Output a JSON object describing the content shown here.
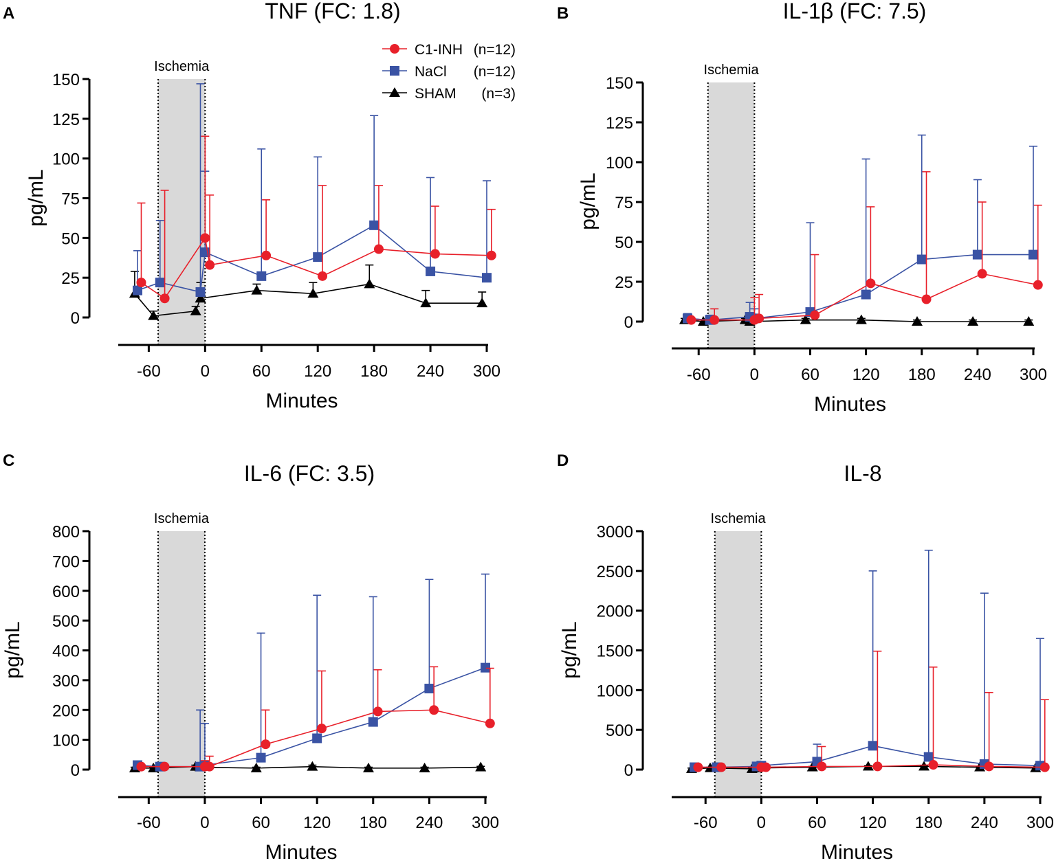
{
  "legend": {
    "entries": [
      {
        "name": "C1-INH",
        "n": "(n=12)",
        "color": "#e8202a",
        "marker": "circle"
      },
      {
        "name": "NaCl",
        "n": "(n=12)",
        "color": "#3a53a4",
        "marker": "square"
      },
      {
        "name": "SHAM",
        "n": "(n=3)",
        "color": "#000000",
        "marker": "triangle"
      }
    ]
  },
  "colors": {
    "c1inh": "#e8202a",
    "nacl": "#3a53a4",
    "sham": "#000000",
    "ischemia_band": "#d9d9d9"
  },
  "chart_data": [
    {
      "panel": "A",
      "type": "line",
      "title": "TNF (FC: 1.8)",
      "xlabel": "Minutes",
      "ylabel": "pg/mL",
      "annotation": "Ischemia",
      "ischemia_range": [
        -50,
        0
      ],
      "xlim": [
        -90,
        305
      ],
      "ylim": [
        0,
        150
      ],
      "xticks": [
        -60,
        0,
        60,
        120,
        180,
        240,
        300
      ],
      "xtick_labels": [
        "-60",
        "0",
        "60",
        "120",
        "180",
        "240",
        "300"
      ],
      "yticks": [
        0,
        25,
        50,
        75,
        100,
        125,
        150
      ],
      "ytick_labels": [
        "0",
        "25",
        "50",
        "75",
        "100",
        "125",
        "150"
      ],
      "series": [
        {
          "name": "SHAM",
          "x": [
            -75,
            -55,
            -10,
            -5,
            55,
            115,
            175,
            235,
            295
          ],
          "values": [
            15,
            1,
            4,
            12,
            17,
            15,
            21,
            9,
            9
          ],
          "err": [
            14,
            3,
            3,
            10,
            4,
            7,
            12,
            8,
            7
          ]
        },
        {
          "name": "NaCl",
          "x": [
            -72,
            -48,
            -5,
            0,
            60,
            120,
            180,
            240,
            300
          ],
          "values": [
            17,
            22,
            16,
            41,
            26,
            38,
            58,
            29,
            25
          ],
          "err": [
            25,
            39,
            131,
            51,
            80,
            63,
            69,
            59,
            61
          ]
        },
        {
          "name": "C1-INH",
          "x": [
            -68,
            -43,
            0,
            5,
            65,
            125,
            185,
            245,
            305
          ],
          "values": [
            22,
            12,
            50,
            33,
            39,
            26,
            43,
            40,
            39
          ],
          "err": [
            50,
            68,
            64,
            44,
            35,
            57,
            40,
            30,
            29
          ]
        }
      ]
    },
    {
      "panel": "B",
      "type": "line",
      "title": "IL-1β (FC: 7.5)",
      "xlabel": "Minutes",
      "ylabel": "pg/mL",
      "annotation": "Ischemia",
      "ischemia_range": [
        -50,
        0
      ],
      "xlim": [
        -90,
        305
      ],
      "ylim": [
        0,
        150
      ],
      "xticks": [
        -60,
        0,
        60,
        120,
        180,
        240,
        300
      ],
      "xtick_labels": [
        "-60",
        "0",
        "60",
        "120",
        "180",
        "240",
        "300"
      ],
      "yticks": [
        0,
        25,
        50,
        75,
        100,
        125,
        150
      ],
      "ytick_labels": [
        "0",
        "25",
        "50",
        "75",
        "100",
        "125",
        "150"
      ],
      "series": [
        {
          "name": "SHAM",
          "x": [
            -75,
            -55,
            -10,
            -5,
            55,
            115,
            175,
            235,
            295
          ],
          "values": [
            1,
            0,
            1,
            0,
            1,
            1,
            0,
            0,
            0
          ],
          "err": [
            1,
            1,
            1,
            1,
            1,
            1,
            1,
            1,
            1
          ]
        },
        {
          "name": "NaCl",
          "x": [
            -72,
            -48,
            -5,
            0,
            60,
            120,
            180,
            240,
            300
          ],
          "values": [
            2,
            1,
            3,
            2,
            6,
            17,
            39,
            42,
            42
          ],
          "err": [
            3,
            3,
            9,
            6,
            56,
            85,
            78,
            47,
            68
          ]
        },
        {
          "name": "C1-INH",
          "x": [
            -68,
            -43,
            0,
            5,
            65,
            125,
            185,
            245,
            305
          ],
          "values": [
            1,
            1,
            1,
            2,
            4,
            24,
            14,
            30,
            23
          ],
          "err": [
            1,
            7,
            14,
            15,
            38,
            48,
            80,
            45,
            50
          ]
        }
      ]
    },
    {
      "panel": "C",
      "type": "line",
      "title": "IL-6 (FC: 3.5)",
      "xlabel": "Minutes",
      "ylabel": "pg/mL",
      "annotation": "Ischemia",
      "ischemia_range": [
        -50,
        0
      ],
      "xlim": [
        -90,
        305
      ],
      "ylim": [
        0,
        800
      ],
      "xticks": [
        -60,
        0,
        60,
        120,
        180,
        240,
        300
      ],
      "xtick_labels": [
        "-60",
        "0",
        "60",
        "120",
        "180",
        "240",
        "300"
      ],
      "yticks": [
        0,
        100,
        200,
        300,
        400,
        500,
        600,
        700,
        800
      ],
      "ytick_labels": [
        "0",
        "100",
        "200",
        "300",
        "400",
        "500",
        "600",
        "700",
        "800"
      ],
      "series": [
        {
          "name": "SHAM",
          "x": [
            -75,
            -55,
            -10,
            -5,
            55,
            115,
            175,
            235,
            295
          ],
          "values": [
            5,
            5,
            10,
            8,
            5,
            10,
            5,
            5,
            8
          ],
          "err": [
            3,
            3,
            5,
            5,
            3,
            5,
            3,
            3,
            3
          ]
        },
        {
          "name": "NaCl",
          "x": [
            -72,
            -48,
            -5,
            0,
            60,
            120,
            180,
            240,
            300
          ],
          "values": [
            15,
            10,
            10,
            15,
            40,
            105,
            160,
            272,
            342
          ],
          "err": [
            5,
            5,
            190,
            140,
            418,
            480,
            420,
            366,
            314
          ]
        },
        {
          "name": "C1-INH",
          "x": [
            -68,
            -43,
            0,
            5,
            65,
            125,
            185,
            245,
            305
          ],
          "values": [
            10,
            10,
            10,
            10,
            85,
            138,
            195,
            200,
            155
          ],
          "err": [
            5,
            5,
            20,
            35,
            115,
            193,
            140,
            145,
            185
          ]
        }
      ]
    },
    {
      "panel": "D",
      "type": "line",
      "title": "IL-8",
      "xlabel": "Minutes",
      "ylabel": "pg/mL",
      "annotation": "Ischemia",
      "ischemia_range": [
        -50,
        0
      ],
      "xlim": [
        -90,
        305
      ],
      "ylim": [
        0,
        3000
      ],
      "xticks": [
        -60,
        0,
        60,
        120,
        180,
        240,
        300
      ],
      "xtick_labels": [
        "-60",
        "0",
        "60",
        "120",
        "180",
        "240",
        "300"
      ],
      "yticks": [
        0,
        500,
        1000,
        1500,
        2000,
        2500,
        3000
      ],
      "ytick_labels": [
        "0",
        "500",
        "1000",
        "1500",
        "2000",
        "2500",
        "3000"
      ],
      "series": [
        {
          "name": "SHAM",
          "x": [
            -75,
            -55,
            -10,
            -5,
            55,
            115,
            175,
            235,
            295
          ],
          "values": [
            10,
            20,
            10,
            20,
            30,
            40,
            40,
            30,
            20
          ],
          "err": [
            10,
            10,
            10,
            10,
            10,
            10,
            10,
            10,
            10
          ]
        },
        {
          "name": "NaCl",
          "x": [
            -72,
            -48,
            -5,
            0,
            60,
            120,
            180,
            240,
            300
          ],
          "values": [
            30,
            30,
            40,
            50,
            100,
            300,
            160,
            70,
            50
          ],
          "err": [
            20,
            20,
            30,
            30,
            220,
            2200,
            2600,
            2150,
            1600
          ]
        },
        {
          "name": "C1-INH",
          "x": [
            -68,
            -43,
            0,
            5,
            65,
            125,
            185,
            245,
            305
          ],
          "values": [
            30,
            30,
            30,
            30,
            40,
            40,
            60,
            40,
            30
          ],
          "err": [
            20,
            20,
            20,
            20,
            250,
            1450,
            1230,
            930,
            850
          ]
        }
      ]
    }
  ]
}
